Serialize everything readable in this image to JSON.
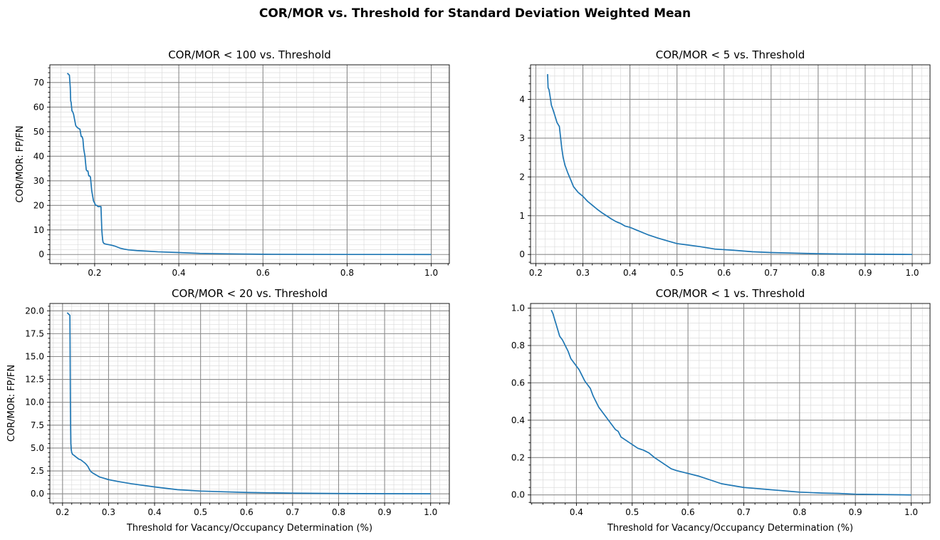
{
  "figure": {
    "suptitle": "COR/MOR vs. Threshold for Standard Deviation Weighted Mean"
  },
  "colors": {
    "line": "#1f77b4",
    "major_grid": "#8c8c8c",
    "minor_grid": "#dcdcdc"
  },
  "chart_data": [
    {
      "type": "line",
      "title": "COR/MOR < 100 vs. Threshold",
      "xlabel": "",
      "ylabel": "COR/MOR: FP/FN",
      "xlim": [
        0.0935,
        1.043
      ],
      "ylim": [
        -3.7,
        77.2
      ],
      "xticks": [
        0.2,
        0.4,
        0.6,
        0.8,
        1.0
      ],
      "xtick_labels": [
        "0.2",
        "0.4",
        "0.6",
        "0.8",
        "1.0"
      ],
      "yticks": [
        0,
        10,
        20,
        30,
        40,
        50,
        60,
        70
      ],
      "ytick_labels": [
        "0",
        "10",
        "20",
        "30",
        "40",
        "50",
        "60",
        "70"
      ],
      "grid": true,
      "x": [
        0.135,
        0.14,
        0.142,
        0.143,
        0.144,
        0.146,
        0.148,
        0.15,
        0.155,
        0.157,
        0.16,
        0.165,
        0.168,
        0.17,
        0.172,
        0.174,
        0.177,
        0.178,
        0.18,
        0.182,
        0.184,
        0.186,
        0.188,
        0.19,
        0.193,
        0.195,
        0.196,
        0.197,
        0.198,
        0.2,
        0.202,
        0.205,
        0.208,
        0.211,
        0.215,
        0.217,
        0.218,
        0.219,
        0.22,
        0.222,
        0.225,
        0.23,
        0.24,
        0.25,
        0.26,
        0.27,
        0.28,
        0.3,
        0.32,
        0.35,
        0.4,
        0.45,
        0.5,
        0.55,
        0.6,
        0.7,
        0.8,
        0.9,
        1.0
      ],
      "y": [
        73.8,
        73,
        68,
        62.5,
        62,
        58.5,
        58,
        57,
        52.5,
        52,
        51.5,
        51,
        48,
        48,
        47,
        43,
        40,
        38,
        34.5,
        34,
        34,
        32,
        32,
        31.5,
        26,
        24,
        23,
        22,
        21.5,
        21,
        20,
        20,
        19.5,
        19.5,
        19.5,
        10,
        7.8,
        6,
        5,
        4.5,
        4.3,
        4.1,
        3.8,
        3.3,
        2.6,
        2.2,
        1.9,
        1.6,
        1.4,
        1.1,
        0.8,
        0.45,
        0.3,
        0.2,
        0.1,
        0.05,
        0.02,
        0.01,
        0
      ]
    },
    {
      "type": "line",
      "title": "COR/MOR < 5 vs. Threshold",
      "xlabel": "",
      "ylabel": "",
      "xlim": [
        0.1887,
        1.0378
      ],
      "ylim": [
        -0.235,
        4.89
      ],
      "xticks": [
        0.2,
        0.3,
        0.4,
        0.5,
        0.6,
        0.7,
        0.8,
        0.9,
        1.0
      ],
      "xtick_labels": [
        "0.2",
        "0.3",
        "0.4",
        "0.5",
        "0.6",
        "0.7",
        "0.8",
        "0.9",
        "1.0"
      ],
      "yticks": [
        0,
        1,
        2,
        3,
        4
      ],
      "ytick_labels": [
        "0",
        "1",
        "2",
        "3",
        "4"
      ],
      "grid": true,
      "x": [
        0.225,
        0.226,
        0.228,
        0.23,
        0.233,
        0.236,
        0.24,
        0.245,
        0.25,
        0.255,
        0.258,
        0.262,
        0.268,
        0.275,
        0.28,
        0.29,
        0.3,
        0.31,
        0.32,
        0.33,
        0.34,
        0.35,
        0.36,
        0.37,
        0.38,
        0.39,
        0.4,
        0.42,
        0.44,
        0.46,
        0.48,
        0.5,
        0.52,
        0.55,
        0.58,
        0.62,
        0.66,
        0.7,
        0.75,
        0.8,
        0.85,
        0.9,
        0.95,
        1.0
      ],
      "y": [
        4.65,
        4.3,
        4.25,
        4.1,
        3.85,
        3.75,
        3.6,
        3.4,
        3.3,
        2.75,
        2.5,
        2.3,
        2.1,
        1.9,
        1.75,
        1.6,
        1.5,
        1.37,
        1.27,
        1.17,
        1.08,
        1.0,
        0.92,
        0.85,
        0.8,
        0.73,
        0.7,
        0.6,
        0.5,
        0.42,
        0.35,
        0.28,
        0.25,
        0.2,
        0.14,
        0.11,
        0.07,
        0.05,
        0.035,
        0.02,
        0.012,
        0.008,
        0.004,
        0.0
      ]
    },
    {
      "type": "line",
      "title": "COR/MOR < 20 vs. Threshold",
      "xlabel": "Threshold for Vacancy/Occupancy Determination (%)",
      "ylabel": "COR/MOR: FP/FN",
      "xlim": [
        0.1724,
        1.0407
      ],
      "ylim": [
        -1.0,
        20.8
      ],
      "xticks": [
        0.2,
        0.3,
        0.4,
        0.5,
        0.6,
        0.7,
        0.8,
        0.9,
        1.0
      ],
      "xtick_labels": [
        "0.2",
        "0.3",
        "0.4",
        "0.5",
        "0.6",
        "0.7",
        "0.8",
        "0.9",
        "1.0"
      ],
      "yticks": [
        0.0,
        2.5,
        5.0,
        7.5,
        10.0,
        12.5,
        15.0,
        17.5,
        20.0
      ],
      "ytick_labels": [
        "0.0",
        "2.5",
        "5.0",
        "7.5",
        "10.0",
        "12.5",
        "15.0",
        "17.5",
        "20.0"
      ],
      "grid": true,
      "x": [
        0.21,
        0.214,
        0.216,
        0.2165,
        0.217,
        0.2175,
        0.218,
        0.219,
        0.22,
        0.222,
        0.225,
        0.23,
        0.235,
        0.24,
        0.25,
        0.255,
        0.258,
        0.262,
        0.268,
        0.275,
        0.28,
        0.29,
        0.3,
        0.32,
        0.35,
        0.4,
        0.45,
        0.5,
        0.55,
        0.6,
        0.7,
        0.8,
        0.9,
        1.0
      ],
      "y": [
        19.8,
        19.6,
        19.5,
        15,
        10,
        7.5,
        5.5,
        4.8,
        4.5,
        4.3,
        4.2,
        4.0,
        3.8,
        3.7,
        3.3,
        3.0,
        2.7,
        2.4,
        2.2,
        2.0,
        1.85,
        1.7,
        1.55,
        1.35,
        1.1,
        0.75,
        0.45,
        0.3,
        0.22,
        0.15,
        0.07,
        0.03,
        0.01,
        0.0
      ]
    },
    {
      "type": "line",
      "title": "COR/MOR < 1 vs. Threshold",
      "xlabel": "Threshold for Vacancy/Occupancy Determination (%)",
      "ylabel": "",
      "xlim": [
        0.3178,
        1.0338
      ],
      "ylim": [
        -0.043,
        1.025
      ],
      "xticks": [
        0.4,
        0.5,
        0.6,
        0.7,
        0.8,
        0.9,
        1.0
      ],
      "xtick_labels": [
        "0.4",
        "0.5",
        "0.6",
        "0.7",
        "0.8",
        "0.9",
        "1.0"
      ],
      "yticks": [
        0.0,
        0.2,
        0.4,
        0.6,
        0.8,
        1.0
      ],
      "ytick_labels": [
        "0.0",
        "0.2",
        "0.4",
        "0.6",
        "0.8",
        "1.0"
      ],
      "grid": true,
      "x": [
        0.355,
        0.358,
        0.362,
        0.366,
        0.37,
        0.375,
        0.38,
        0.385,
        0.39,
        0.395,
        0.4,
        0.405,
        0.41,
        0.415,
        0.42,
        0.425,
        0.43,
        0.435,
        0.44,
        0.445,
        0.45,
        0.455,
        0.46,
        0.465,
        0.47,
        0.475,
        0.48,
        0.49,
        0.5,
        0.51,
        0.52,
        0.53,
        0.54,
        0.55,
        0.56,
        0.57,
        0.58,
        0.6,
        0.62,
        0.64,
        0.66,
        0.68,
        0.7,
        0.72,
        0.74,
        0.76,
        0.78,
        0.8,
        0.84,
        0.87,
        0.9,
        0.95,
        1.0
      ],
      "y": [
        0.99,
        0.97,
        0.93,
        0.89,
        0.85,
        0.83,
        0.8,
        0.77,
        0.73,
        0.71,
        0.69,
        0.67,
        0.64,
        0.61,
        0.59,
        0.57,
        0.53,
        0.5,
        0.47,
        0.45,
        0.43,
        0.41,
        0.39,
        0.37,
        0.35,
        0.34,
        0.31,
        0.29,
        0.27,
        0.25,
        0.24,
        0.225,
        0.2,
        0.18,
        0.16,
        0.14,
        0.13,
        0.115,
        0.1,
        0.08,
        0.06,
        0.05,
        0.04,
        0.035,
        0.03,
        0.025,
        0.02,
        0.015,
        0.01,
        0.008,
        0.004,
        0.002,
        0.0
      ]
    }
  ]
}
